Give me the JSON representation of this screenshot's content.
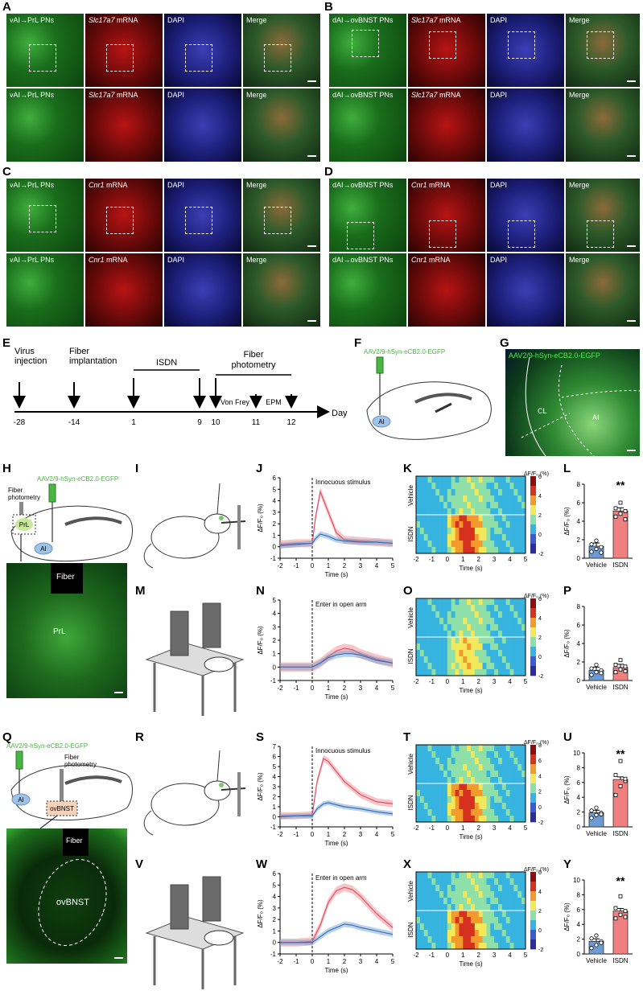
{
  "panels": {
    "A": "A",
    "B": "B",
    "C": "C",
    "D": "D",
    "E": "E",
    "F": "F",
    "G": "G",
    "H": "H",
    "I": "I",
    "J": "J",
    "K": "K",
    "L": "L",
    "M": "M",
    "N": "N",
    "O": "O",
    "P": "P",
    "Q": "Q",
    "R": "R",
    "S": "S",
    "T": "T",
    "U": "U",
    "V": "V",
    "W": "W",
    "X": "X",
    "Y": "Y"
  },
  "micro": {
    "vai_prl": "vAI→PrL PNs",
    "dai_ovbnst": "dAI→ovBNST PNs",
    "slc": "Slc17a7",
    "cnr": "Cnr1",
    "mrna": " mRNA",
    "dapi": "DAPI",
    "merge": "Merge"
  },
  "timeline": {
    "events": [
      {
        "label": "Virus\ninjection",
        "day": "-28"
      },
      {
        "label": "Fiber\nimplantation",
        "day": "-14"
      },
      {
        "label": "",
        "day": "1"
      },
      {
        "label": "",
        "day": "9"
      },
      {
        "label": "",
        "day": "10"
      },
      {
        "label": "",
        "day": "11"
      },
      {
        "label": "",
        "day": "12"
      }
    ],
    "isdn": "ISDN",
    "fp": "Fiber\nphotometry",
    "vonfrey": "Von Frey",
    "epm": "EPM",
    "axis": "Day"
  },
  "virus": "AAV2/9-hSyn-eCB2.0-EGFP",
  "fiber_photometry": "Fiber\nphotometry",
  "region_ai": "AI",
  "region_prl": "PrL",
  "region_ovbnst": "ovBNST",
  "region_cl": "CL",
  "fiber": "Fiber",
  "trace_ylabel": "ΔF/F₀ (%)",
  "time_label": "Time (s)",
  "stim_innocuous": "Innocuous stimulus",
  "stim_open": "Enter in open arm",
  "heat_title": "ΔF/F₀ (%)",
  "group_vehicle": "Vehicle",
  "group_isdn": "ISDN",
  "sig": "**",
  "colors": {
    "vehicle": "#6b9bd2",
    "isdn": "#f08080",
    "vehicle_line": "#3a6fb5",
    "isdn_line": "#e0506a"
  },
  "chart_data": [
    {
      "type": "line",
      "panel": "J",
      "ylim": [
        -1,
        6
      ],
      "x": [
        -2,
        5
      ],
      "xticks": [
        -2,
        -1,
        0,
        1,
        2,
        3,
        4,
        5
      ],
      "yticks": [
        -1,
        0,
        1,
        2,
        3,
        4,
        5,
        6
      ],
      "event": "Innocuous stimulus",
      "series": [
        {
          "name": "ISDN",
          "x": [
            -2,
            -1,
            0,
            0.2,
            0.5,
            1,
            1.5,
            2,
            3,
            4,
            5
          ],
          "values": [
            0.2,
            0.3,
            0.3,
            2.5,
            4.8,
            3.0,
            1.2,
            0.6,
            0.5,
            0.4,
            0.3
          ]
        },
        {
          "name": "Vehicle",
          "x": [
            -2,
            -1,
            0,
            0.2,
            0.5,
            1,
            1.5,
            2,
            3,
            4,
            5
          ],
          "values": [
            0.1,
            0.2,
            0.3,
            0.7,
            1.1,
            0.9,
            0.6,
            0.5,
            0.4,
            0.4,
            0.3
          ]
        }
      ]
    },
    {
      "type": "line",
      "panel": "N",
      "ylim": [
        -1,
        5
      ],
      "x": [
        -2,
        5
      ],
      "xticks": [
        -2,
        -1,
        0,
        1,
        2,
        3,
        4,
        5
      ],
      "yticks": [
        -1,
        0,
        1,
        2,
        3,
        4,
        5
      ],
      "event": "Enter in open arm",
      "series": [
        {
          "name": "ISDN",
          "x": [
            -2,
            -1,
            0,
            0.5,
            1,
            1.5,
            2,
            2.5,
            3,
            4,
            5
          ],
          "values": [
            0,
            0,
            0,
            0.3,
            0.8,
            1.2,
            1.4,
            1.3,
            1.0,
            0.6,
            0.3
          ]
        },
        {
          "name": "Vehicle",
          "x": [
            -2,
            -1,
            0,
            0.5,
            1,
            1.5,
            2,
            2.5,
            3,
            4,
            5
          ],
          "values": [
            0,
            0,
            0,
            0.3,
            0.7,
            0.9,
            1.0,
            1.0,
            0.9,
            0.5,
            0.3
          ]
        }
      ]
    },
    {
      "type": "line",
      "panel": "S",
      "ylim": [
        -1,
        7
      ],
      "x": [
        -2,
        5
      ],
      "xticks": [
        -2,
        -1,
        0,
        1,
        2,
        3,
        4,
        5
      ],
      "yticks": [
        -1,
        0,
        1,
        2,
        3,
        4,
        5,
        6,
        7
      ],
      "event": "Innocuous stimulus",
      "series": [
        {
          "name": "ISDN",
          "x": [
            -2,
            -1,
            0,
            0.3,
            0.7,
            1,
            1.5,
            2,
            3,
            4,
            5
          ],
          "values": [
            0.1,
            0.1,
            0.2,
            3.5,
            5.8,
            5.5,
            4.5,
            3.5,
            2.2,
            1.5,
            1.3
          ]
        },
        {
          "name": "Vehicle",
          "x": [
            -2,
            -1,
            0,
            0.3,
            0.7,
            1,
            1.5,
            2,
            3,
            4,
            5
          ],
          "values": [
            0,
            0.1,
            0.1,
            0.8,
            1.3,
            1.4,
            1.2,
            1.0,
            0.8,
            0.5,
            0.3
          ]
        }
      ]
    },
    {
      "type": "line",
      "panel": "W",
      "ylim": [
        -1,
        6
      ],
      "x": [
        -2,
        5
      ],
      "xticks": [
        -2,
        -1,
        0,
        1,
        2,
        3,
        4,
        5
      ],
      "yticks": [
        -1,
        0,
        1,
        2,
        3,
        4,
        5,
        6
      ],
      "event": "Enter in open arm",
      "series": [
        {
          "name": "ISDN",
          "x": [
            -2,
            -1,
            0,
            0.5,
            1,
            1.5,
            2,
            2.5,
            3,
            4,
            5
          ],
          "values": [
            0,
            0,
            0.1,
            1.5,
            3.5,
            4.5,
            4.8,
            4.6,
            4.0,
            2.5,
            1.3
          ]
        },
        {
          "name": "Vehicle",
          "x": [
            -2,
            -1,
            0,
            0.5,
            1,
            1.5,
            2,
            2.5,
            3,
            4,
            5
          ],
          "values": [
            0,
            0,
            0,
            0.5,
            1.0,
            1.3,
            1.6,
            1.5,
            1.3,
            1.0,
            0.7
          ]
        }
      ]
    },
    {
      "type": "bar",
      "panel": "L",
      "categories": [
        "Vehicle",
        "ISDN"
      ],
      "values": [
        1.3,
        5.1
      ],
      "ylim": [
        0,
        8
      ],
      "yticks": [
        0,
        2,
        4,
        6,
        8
      ],
      "points": [
        [
          0.7,
          1.0,
          1.2,
          1.5,
          1.9,
          0.6
        ],
        [
          4.5,
          4.8,
          5.1,
          5.4,
          6.0,
          4.2
        ]
      ],
      "sig": "**"
    },
    {
      "type": "bar",
      "panel": "P",
      "categories": [
        "Vehicle",
        "ISDN"
      ],
      "values": [
        1.1,
        1.4
      ],
      "ylim": [
        0,
        8
      ],
      "yticks": [
        0,
        2,
        4,
        6,
        8
      ],
      "points": [
        [
          0.6,
          0.9,
          1.1,
          1.3,
          1.7,
          0.8
        ],
        [
          0.9,
          1.2,
          1.5,
          1.7,
          2.2,
          1.0
        ]
      ],
      "sig": ""
    },
    {
      "type": "bar",
      "panel": "U",
      "categories": [
        "Vehicle",
        "ISDN"
      ],
      "values": [
        1.9,
        6.4
      ],
      "ylim": [
        0,
        10
      ],
      "yticks": [
        0,
        2,
        4,
        6,
        8,
        10
      ],
      "points": [
        [
          1.2,
          1.6,
          1.9,
          2.2,
          2.6,
          1.7
        ],
        [
          4.3,
          5.5,
          6.2,
          7.0,
          8.9,
          6.5
        ]
      ],
      "sig": "**"
    },
    {
      "type": "bar",
      "panel": "Y",
      "categories": [
        "Vehicle",
        "ISDN"
      ],
      "values": [
        1.7,
        5.8
      ],
      "ylim": [
        0,
        10
      ],
      "yticks": [
        0,
        2,
        4,
        6,
        8,
        10
      ],
      "points": [
        [
          0.8,
          1.2,
          1.7,
          2.1,
          2.5,
          1.5
        ],
        [
          4.8,
          5.3,
          5.8,
          6.2,
          7.8,
          5.0
        ]
      ],
      "sig": "**"
    },
    {
      "type": "heatmap",
      "panel": "K",
      "xticks": [
        -2,
        -1,
        0,
        1,
        2,
        3,
        4,
        5
      ],
      "colorbar": [
        -2,
        6
      ],
      "cbticks": [
        -2,
        0,
        2,
        4,
        6
      ]
    },
    {
      "type": "heatmap",
      "panel": "O",
      "xticks": [
        -2,
        -1,
        0,
        1,
        2,
        3,
        4,
        5
      ],
      "colorbar": [
        -2,
        6
      ],
      "cbticks": [
        -2,
        0,
        2,
        4,
        6
      ]
    },
    {
      "type": "heatmap",
      "panel": "T",
      "xticks": [
        -2,
        -1,
        0,
        1,
        2,
        3,
        4,
        5
      ],
      "colorbar": [
        -2,
        8
      ],
      "cbticks": [
        -2,
        0,
        2,
        4,
        6,
        8
      ]
    },
    {
      "type": "heatmap",
      "panel": "X",
      "xticks": [
        -2,
        -1,
        0,
        1,
        2,
        3,
        4,
        5
      ],
      "colorbar": [
        -2,
        6
      ],
      "cbticks": [
        -2,
        0,
        2,
        4,
        6
      ]
    }
  ]
}
